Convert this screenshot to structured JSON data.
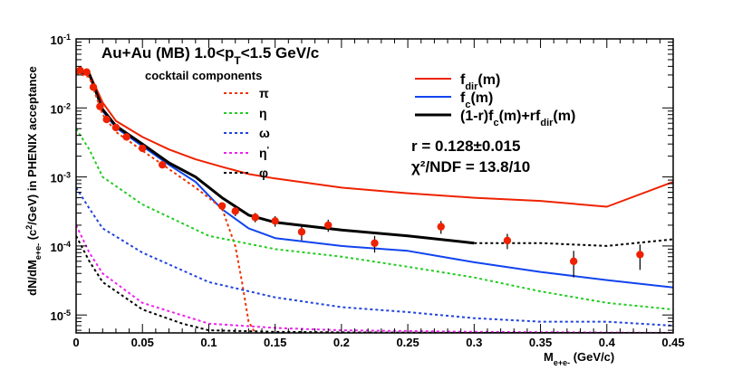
{
  "chart_data": {
    "type": "line",
    "title": "Au+Au (MB) 1.0<p_T<1.5 GeV/c",
    "title_parts": {
      "main": "Au+Au (MB) 1.0<p",
      "sub": "T",
      "tail": "<1.5 GeV/c"
    },
    "xlabel": "M_e+e- (GeV/c)",
    "xlabel_parts": {
      "main": "M",
      "sub": "e+e-",
      "tail": " (GeV/c)"
    },
    "ylabel": "dN/dM_e+e- (c^2/GeV) in PHENIX acceptance",
    "ylabel_parts": {
      "pre": "dN/dM",
      "sub": "e+e-",
      "mid": " (c",
      "sup": "2",
      "post": "/GeV) in PHENIX acceptance"
    },
    "xlim": [
      0,
      0.45
    ],
    "ylim": [
      5.5e-06,
      0.1
    ],
    "yscale": "log",
    "x_ticks": [
      0,
      0.05,
      0.1,
      0.15,
      0.2,
      0.25,
      0.3,
      0.35,
      0.4,
      0.45
    ],
    "x_tick_labels": [
      "0",
      "0.05",
      "0.1",
      "0.15",
      "0.2",
      "0.25",
      "0.3",
      "0.35",
      "0.4",
      "0.45"
    ],
    "y_ticks": [
      {
        "value": 0.1,
        "base": "10",
        "exp": "-1"
      },
      {
        "value": 0.01,
        "base": "10",
        "exp": "-2"
      },
      {
        "value": 0.001,
        "base": "10",
        "exp": "-3"
      },
      {
        "value": 0.0001,
        "base": "10",
        "exp": "-4"
      },
      {
        "value": 1e-05,
        "base": "10",
        "exp": "-5"
      }
    ],
    "legend_left": {
      "title": "cocktail components",
      "entries": [
        {
          "label": "π",
          "sup": "",
          "color": "#ee3300",
          "dash": "dotted"
        },
        {
          "label": "η",
          "sup": "",
          "color": "#22cc22",
          "dash": "dotted"
        },
        {
          "label": "ω",
          "sup": "",
          "color": "#2244dd",
          "dash": "dotted"
        },
        {
          "label": "η",
          "sup": "'",
          "color": "#ee22ee",
          "dash": "dotted"
        },
        {
          "label": "φ",
          "sup": "",
          "color": "#000000",
          "dash": "dotted"
        }
      ]
    },
    "legend_right": [
      {
        "parts": [
          {
            "t": "f"
          },
          {
            "t": "dir",
            "s": "sub"
          },
          {
            "t": "(m)"
          }
        ],
        "color": "#ee2200"
      },
      {
        "parts": [
          {
            "t": "f"
          },
          {
            "t": "c",
            "s": "sub"
          },
          {
            "t": "(m)"
          }
        ],
        "color": "#1144ee"
      },
      {
        "parts": [
          {
            "t": "(1-r)f"
          },
          {
            "t": "c",
            "s": "sub"
          },
          {
            "t": "(m)+rf"
          },
          {
            "t": "dir",
            "s": "sub"
          },
          {
            "t": "(m)"
          }
        ],
        "color": "#000000"
      }
    ],
    "annotations": [
      "r = 0.128±0.015",
      "χ²/NDF = 13.8/10"
    ],
    "colors": {
      "data": "#ee2200",
      "fdir": "#ee2200",
      "fc": "#1144ee",
      "fit": "#000000",
      "pi": "#ee3300",
      "eta": "#22cc22",
      "omega": "#2244dd",
      "etap": "#ee22ee",
      "phi": "#000000"
    },
    "series": [
      {
        "name": "f_dir(m)",
        "color": "#ee2200",
        "style": "solid",
        "x": [
          0.0,
          0.01,
          0.02,
          0.03,
          0.05,
          0.07,
          0.09,
          0.11,
          0.13,
          0.15,
          0.2,
          0.25,
          0.3,
          0.35,
          0.4,
          0.45
        ],
        "y": [
          0.035,
          0.032,
          0.012,
          0.0065,
          0.0038,
          0.0025,
          0.0018,
          0.0014,
          0.0011,
          0.00095,
          0.0007,
          0.00058,
          0.0005,
          0.00045,
          0.00037,
          0.00085
        ]
      },
      {
        "name": "f_c(m)",
        "color": "#1144ee",
        "style": "solid",
        "x": [
          0.0,
          0.01,
          0.02,
          0.03,
          0.05,
          0.07,
          0.09,
          0.11,
          0.13,
          0.15,
          0.2,
          0.25,
          0.3,
          0.35,
          0.4,
          0.45
        ],
        "y": [
          0.033,
          0.03,
          0.009,
          0.0052,
          0.0028,
          0.0015,
          0.00085,
          0.00034,
          0.00018,
          0.00013,
          0.0001,
          8.5e-05,
          5.8e-05,
          4.2e-05,
          3.2e-05,
          2.5e-05
        ]
      },
      {
        "name": "(1-r)f_c(m)+rf_dir(m)",
        "color": "#000000",
        "style": "solid",
        "x": [
          0.0,
          0.01,
          0.02,
          0.03,
          0.05,
          0.07,
          0.09,
          0.11,
          0.13,
          0.15,
          0.2,
          0.25,
          0.3
        ],
        "y": [
          0.034,
          0.031,
          0.0095,
          0.0055,
          0.003,
          0.0016,
          0.001,
          0.0005,
          0.00028,
          0.00022,
          0.00017,
          0.00014,
          0.00011
        ]
      },
      {
        "name": "(1-r)f_c(m)+rf_dir(m) extension",
        "color": "#000000",
        "style": "dotted",
        "x": [
          0.3,
          0.35,
          0.4,
          0.45
        ],
        "y": [
          0.00011,
          0.00011,
          0.0001,
          0.000125
        ]
      },
      {
        "name": "π",
        "color": "#ee3300",
        "style": "dotted",
        "x": [
          0.0,
          0.01,
          0.02,
          0.03,
          0.05,
          0.07,
          0.09,
          0.1,
          0.11,
          0.12,
          0.125,
          0.13,
          0.135
        ],
        "y": [
          0.032,
          0.028,
          0.008,
          0.0045,
          0.0024,
          0.0013,
          0.0007,
          0.0005,
          0.00035,
          0.0001,
          3e-05,
          8e-06,
          5.5e-06
        ]
      },
      {
        "name": "η",
        "color": "#22cc22",
        "style": "dotted",
        "x": [
          0.0,
          0.01,
          0.02,
          0.05,
          0.1,
          0.15,
          0.2,
          0.25,
          0.3,
          0.35,
          0.4,
          0.45
        ],
        "y": [
          0.005,
          0.0025,
          0.001,
          0.0004,
          0.00014,
          9e-05,
          7e-05,
          5e-05,
          3.5e-05,
          2.2e-05,
          1.5e-05,
          1.2e-05
        ]
      },
      {
        "name": "ω",
        "color": "#2244dd",
        "style": "dotted",
        "x": [
          0.0,
          0.01,
          0.02,
          0.05,
          0.1,
          0.15,
          0.2,
          0.25,
          0.3,
          0.35,
          0.4,
          0.45
        ],
        "y": [
          0.0007,
          0.00035,
          0.00018,
          8e-05,
          3e-05,
          1.8e-05,
          1.3e-05,
          1.1e-05,
          9e-06,
          8e-06,
          8e-06,
          7e-06
        ]
      },
      {
        "name": "η'",
        "color": "#ee22ee",
        "style": "dotted",
        "x": [
          0.0,
          0.01,
          0.02,
          0.05,
          0.1,
          0.15,
          0.2,
          0.3,
          0.45
        ],
        "y": [
          0.0002,
          8e-05,
          4e-05,
          1.5e-05,
          7.5e-06,
          6.5e-06,
          6e-06,
          5.7e-06,
          5.5e-06
        ]
      },
      {
        "name": "φ",
        "color": "#000000",
        "style": "dotted",
        "x": [
          0.0,
          0.01,
          0.02,
          0.05,
          0.08,
          0.1,
          0.15,
          0.2,
          0.3,
          0.45
        ],
        "y": [
          0.00014,
          6e-05,
          3e-05,
          1.2e-05,
          7.5e-06,
          6e-06,
          5.7e-06,
          5.6e-06,
          5.5e-06,
          5.5e-06
        ]
      }
    ],
    "data_points": {
      "name": "data",
      "color": "#ee2200",
      "points": [
        {
          "x": 0.003,
          "y": 0.035
        },
        {
          "x": 0.008,
          "y": 0.033
        },
        {
          "x": 0.013,
          "y": 0.02
        },
        {
          "x": 0.018,
          "y": 0.0105
        },
        {
          "x": 0.023,
          "y": 0.0068
        },
        {
          "x": 0.03,
          "y": 0.0052
        },
        {
          "x": 0.038,
          "y": 0.0038
        },
        {
          "x": 0.05,
          "y": 0.0026
        },
        {
          "x": 0.065,
          "y": 0.0015
        },
        {
          "x": 0.11,
          "y": 0.00038,
          "err": 5e-05
        },
        {
          "x": 0.12,
          "y": 0.00032,
          "err": 5e-05
        },
        {
          "x": 0.135,
          "y": 0.00026,
          "err": 4e-05
        },
        {
          "x": 0.15,
          "y": 0.00023,
          "err": 4e-05
        },
        {
          "x": 0.17,
          "y": 0.00016,
          "err": 4e-05
        },
        {
          "x": 0.19,
          "y": 0.0002,
          "err": 4e-05
        },
        {
          "x": 0.225,
          "y": 0.00011,
          "err": 3e-05
        },
        {
          "x": 0.275,
          "y": 0.00019,
          "err": 4e-05
        },
        {
          "x": 0.325,
          "y": 0.00012,
          "err": 3e-05
        },
        {
          "x": 0.375,
          "y": 6e-05,
          "err": 2.5e-05
        },
        {
          "x": 0.425,
          "y": 7.5e-05,
          "err": 3e-05
        }
      ]
    }
  }
}
